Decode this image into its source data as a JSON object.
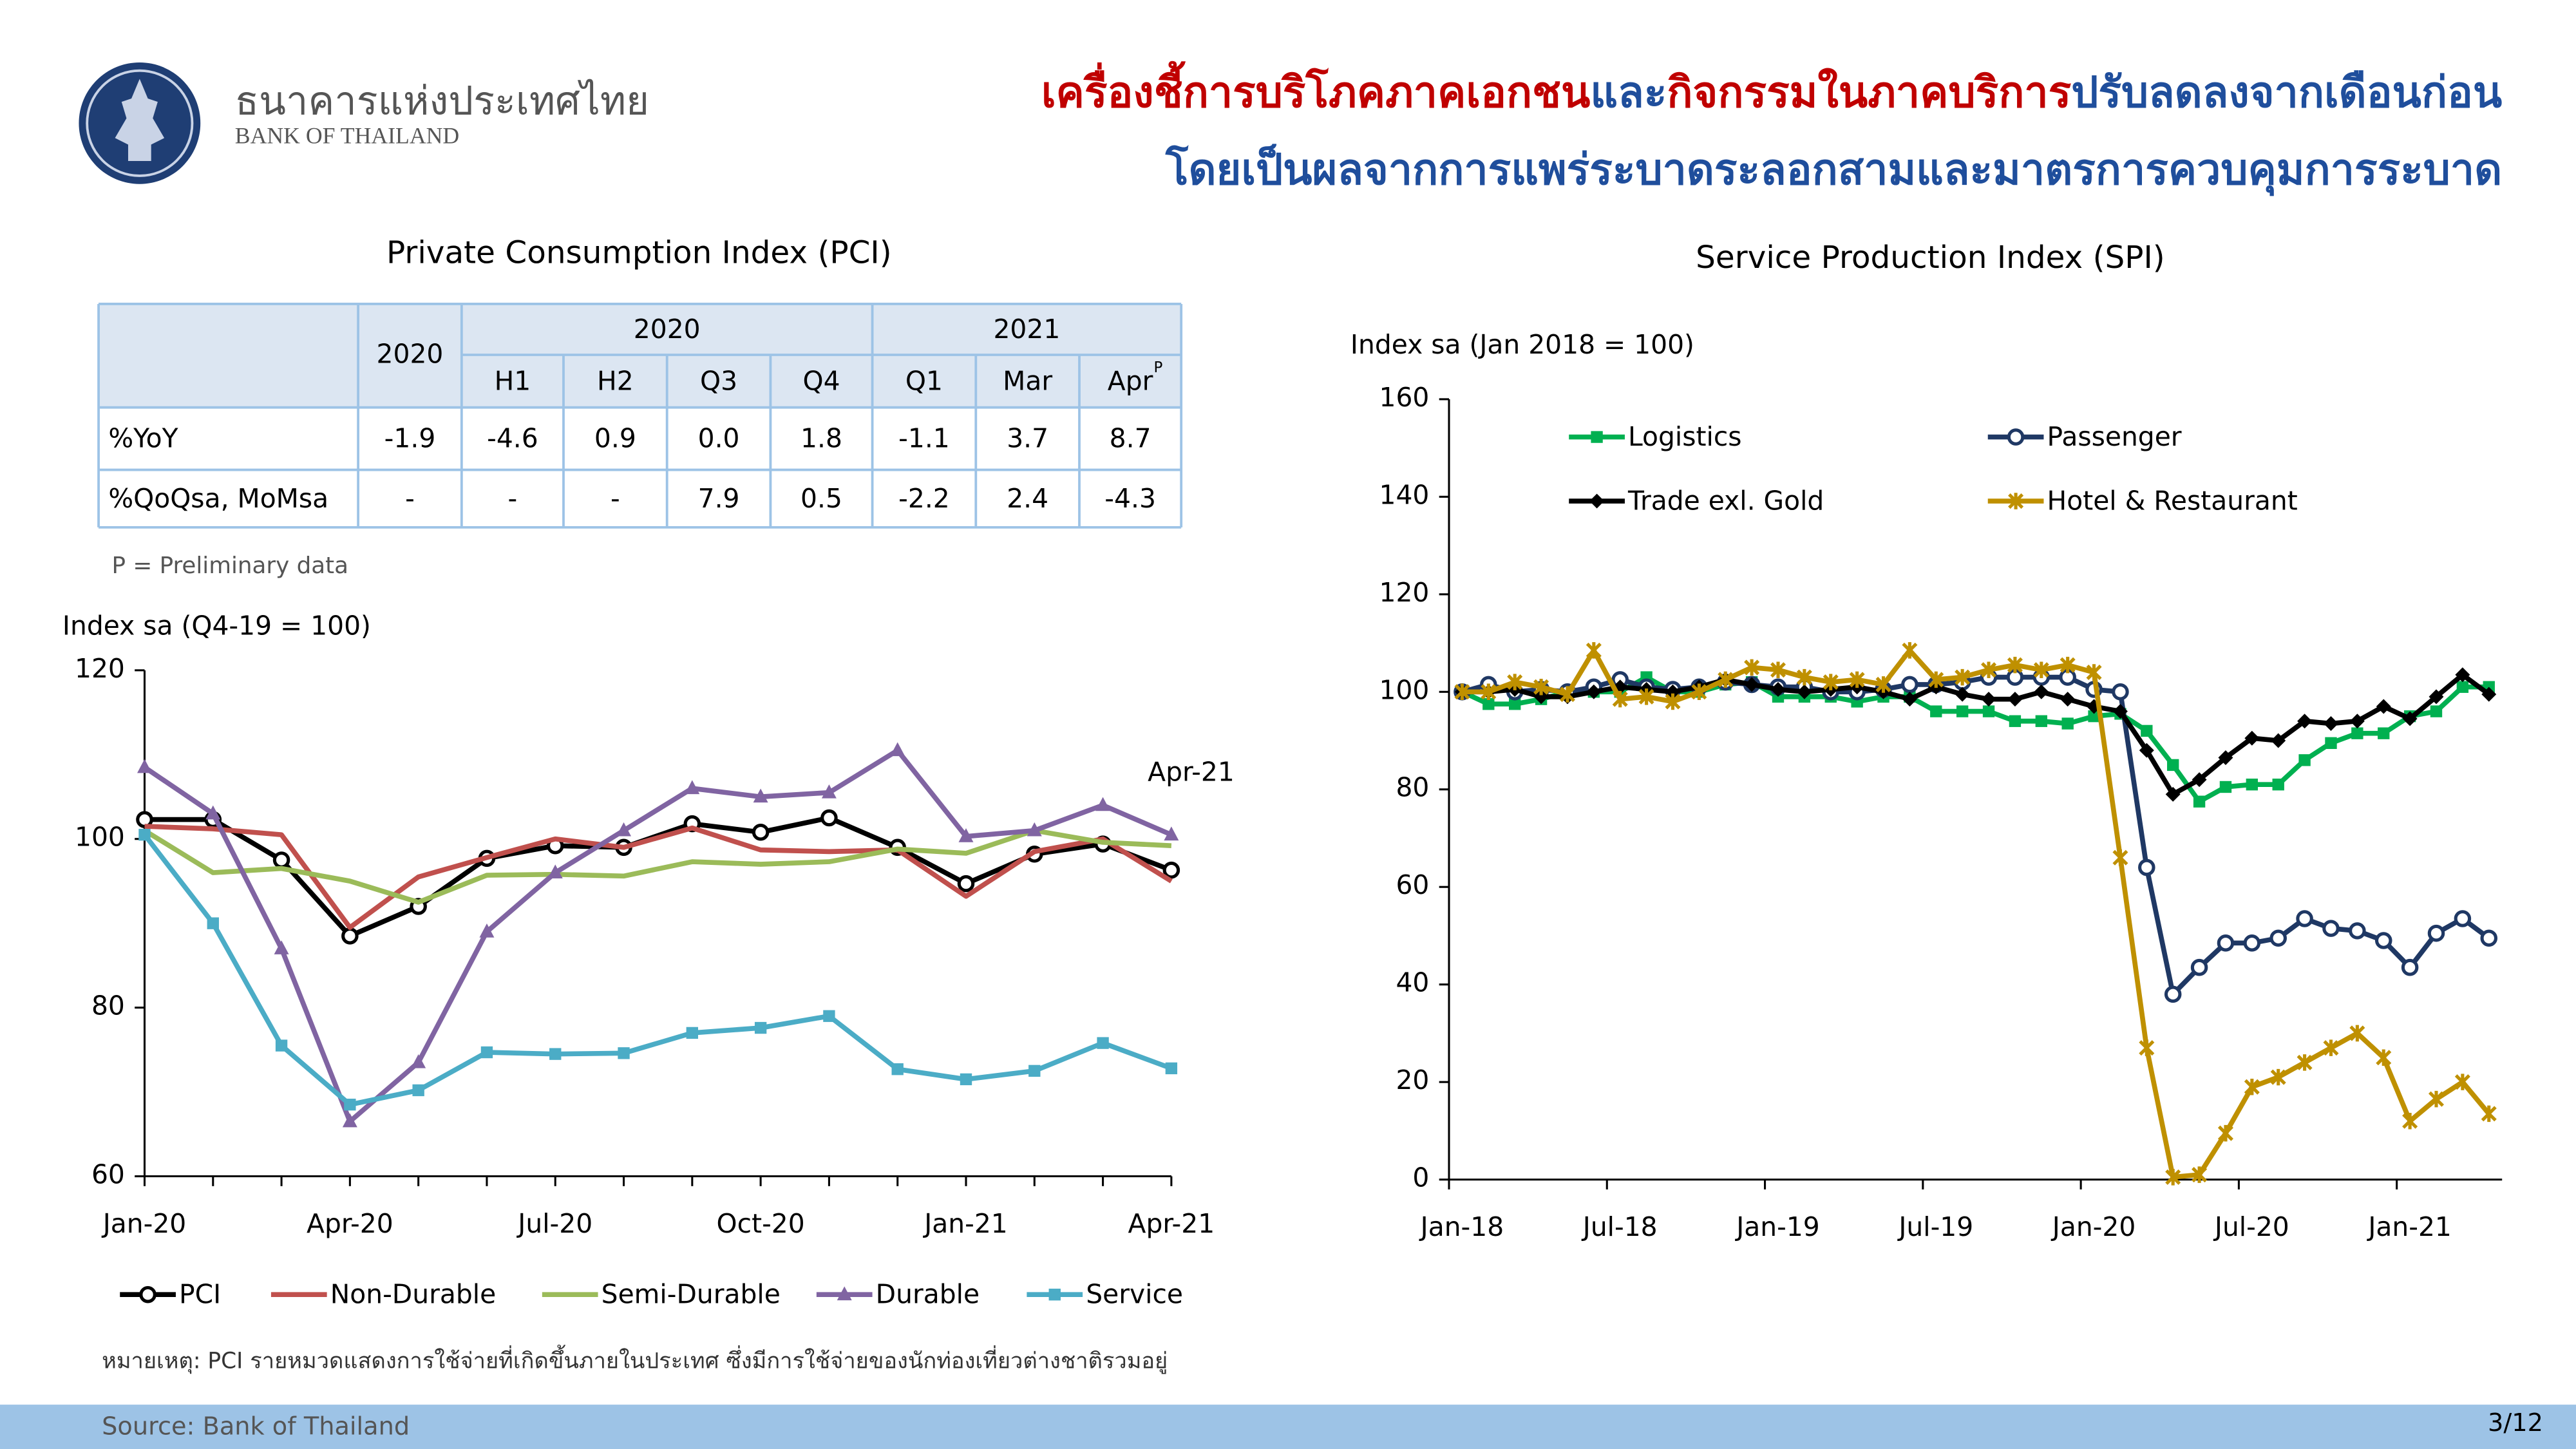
{
  "header": {
    "bank_name_th": "ธนาคารแห่งประเทศไทย",
    "bank_name_en": "BANK OF THAILAND",
    "title_lines": [
      [
        {
          "text": "เครื่องชี้การบริโภคภาคเอกชน",
          "color": "#c00000"
        },
        {
          "text": "และ",
          "color": "#1f4e9c"
        },
        {
          "text": "กิจกรรมในภาคบริการ",
          "color": "#c00000"
        },
        {
          "text": "ปรับลดลงจากเดือนก่อน",
          "color": "#1f4e9c"
        }
      ],
      [
        {
          "text": "โดยเป็นผลจากการแพร่ระบาดระลอกสามและมาตรการควบคุมการระบาด",
          "color": "#1f4e9c"
        }
      ]
    ]
  },
  "table": {
    "year_column": "2020",
    "groups": [
      "2020",
      "2021"
    ],
    "subcolumns": [
      "H1",
      "H2",
      "Q3",
      "Q4",
      "Q1",
      "Mar",
      "Apr"
    ],
    "superscript": "P",
    "rows": [
      [
        "%YoY",
        "-1.9",
        "-4.6",
        "0.9",
        "0.0",
        "1.8",
        "-1.1",
        "3.7",
        "8.7"
      ],
      [
        "%QoQsa, MoMsa",
        "-",
        "-",
        "-",
        "7.9",
        "0.5",
        "-2.2",
        "2.4",
        "-4.3"
      ]
    ],
    "footnote": "P = Preliminary data"
  },
  "chart_data": [
    {
      "type": "line",
      "title": "Private Consumption Index (PCI)",
      "y_label": "Index sa (Q4-19 = 100)",
      "categories": [
        "Jan-20",
        null,
        null,
        "Apr-20",
        null,
        null,
        "Jul-20",
        null,
        null,
        "Oct-20",
        null,
        null,
        "Jan-21",
        null,
        null,
        "Apr-21"
      ],
      "ylim": [
        60,
        120
      ],
      "yticks": [
        60,
        80,
        100,
        120
      ],
      "annotations": [
        "Apr-21"
      ],
      "legend": "bottom",
      "series": [
        {
          "name": "PCI",
          "color": "#000000",
          "marker": "circle",
          "values": [
            102.3,
            102.3,
            97.5,
            88.5,
            92,
            97.7,
            99.2,
            99,
            101.8,
            100.8,
            102.5,
            99,
            94.7,
            98.2,
            99.4,
            96.3
          ]
        },
        {
          "name": "Non-Durable",
          "color": "#c0504d",
          "marker": "none",
          "values": [
            101.5,
            101.2,
            100.5,
            89.5,
            95.5,
            97.8,
            100,
            99,
            101.3,
            98.7,
            98.5,
            98.7,
            93.2,
            98.5,
            100,
            95
          ]
        },
        {
          "name": "Semi-Durable",
          "color": "#9bbb59",
          "marker": "none",
          "values": [
            101,
            96,
            96.5,
            95,
            92.5,
            95.7,
            95.8,
            95.6,
            97.3,
            97,
            97.3,
            98.8,
            98.3,
            101,
            99.6,
            99.2
          ]
        },
        {
          "name": "Durable",
          "color": "#8064a2",
          "marker": "triangle",
          "values": [
            108.5,
            103,
            87,
            66.5,
            73.5,
            89,
            96,
            101,
            106,
            105,
            105.5,
            110.5,
            100.3,
            101,
            104,
            100.5
          ]
        },
        {
          "name": "Service",
          "color": "#4bacc6",
          "marker": "square",
          "values": [
            100.5,
            90,
            75.5,
            68.5,
            70.2,
            74.7,
            74.5,
            74.6,
            77,
            77.6,
            79,
            72.7,
            71.5,
            72.5,
            75.8,
            72.8
          ]
        }
      ]
    },
    {
      "type": "line",
      "title": "Service Production Index (SPI)",
      "y_label": "Index sa (Jan 2018 = 100)",
      "categories": [
        "Jan-18",
        null,
        null,
        null,
        null,
        null,
        "Jul-18",
        null,
        null,
        null,
        null,
        null,
        "Jan-19",
        null,
        null,
        null,
        null,
        null,
        "Jul-19",
        null,
        null,
        null,
        null,
        null,
        "Jan-20",
        null,
        null,
        null,
        null,
        null,
        "Jul-20",
        null,
        null,
        null,
        null,
        null,
        "Jan-21",
        null,
        null,
        null
      ],
      "ylim": [
        0,
        160
      ],
      "yticks": [
        0,
        20,
        40,
        60,
        80,
        100,
        120,
        140,
        160
      ],
      "legend": "top-left",
      "series": [
        {
          "name": "Logistics",
          "color": "#00b050",
          "marker": "square",
          "values": [
            100,
            97.5,
            97.5,
            98.5,
            100,
            100,
            100,
            103,
            100,
            100,
            101.5,
            102,
            99,
            99,
            99,
            98,
            99,
            99,
            96,
            96,
            96,
            94,
            94,
            93.5,
            95,
            95.5,
            92,
            85,
            77.5,
            80.5,
            81,
            81,
            86,
            89.5,
            91.5,
            91.5,
            95,
            96,
            101,
            101
          ]
        },
        {
          "name": "Passenger",
          "color": "#1f3864",
          "marker": "circle",
          "values": [
            100,
            101.5,
            100,
            100.5,
            100,
            101,
            102.5,
            101,
            100.5,
            101,
            102,
            101.5,
            101,
            101,
            100,
            100,
            100.5,
            101.5,
            101.5,
            102,
            103,
            103,
            103,
            103,
            100.5,
            100,
            64,
            38,
            43.5,
            48.5,
            48.5,
            49.5,
            53.5,
            51.5,
            51,
            49,
            43.5,
            50.5,
            53.5,
            49.5
          ]
        },
        {
          "name": "Trade  exl. Gold",
          "color": "#000000",
          "marker": "diamond",
          "values": [
            100,
            100,
            100.5,
            99,
            99,
            100,
            101,
            100.5,
            100,
            101,
            102.5,
            101.5,
            100.5,
            100,
            100.5,
            101,
            100,
            98.5,
            101,
            99.5,
            98.5,
            98.5,
            100,
            98.5,
            97,
            96,
            88,
            79,
            82,
            86.5,
            90.5,
            90,
            94,
            93.5,
            94,
            97,
            94.5,
            99,
            103.5,
            99.5
          ]
        },
        {
          "name": "Hotel & Restaurant",
          "color": "#bf9000",
          "marker": "star",
          "values": [
            100,
            100,
            102,
            101,
            99.5,
            108.5,
            98.5,
            99,
            98,
            100,
            102.5,
            105,
            104.5,
            103,
            102,
            102.5,
            101.5,
            108.5,
            102.5,
            103,
            104.5,
            105.5,
            104.5,
            105.5,
            104,
            66,
            27,
            0.5,
            1,
            9.5,
            19,
            21,
            24,
            27,
            30,
            25,
            12,
            16.5,
            20,
            13.5
          ]
        }
      ]
    }
  ],
  "note": "หมายเหตุ: PCI รายหมวดแสดงการใช้จ่ายที่เกิดขึ้นภายในประเทศ ซึ่งมีการใช้จ่ายของนักท่องเที่ยวต่างชาติรวมอยู่",
  "footer": {
    "source": "Source: Bank of Thailand",
    "page": "3/12"
  }
}
